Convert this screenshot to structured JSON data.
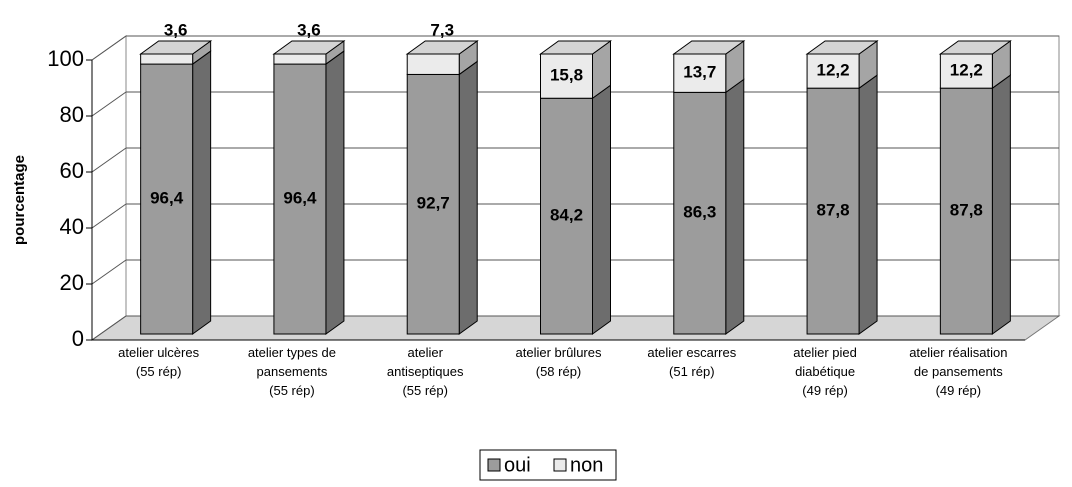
{
  "chart_data": {
    "type": "bar3d_stacked",
    "y_label": "pourcentage",
    "categories": [
      "atelier ulcères\n(55 rép)",
      "atelier types de\npansements\n(55 rép)",
      "atelier\nantiseptiques\n(55 rép)",
      "atelier brûlures\n(58 rép)",
      "atelier escarres\n(51 rép)",
      "atelier pied\ndiabétique\n(49 rép)",
      "atelier réalisation\nde pansements\n(49 rép)"
    ],
    "series": [
      {
        "name": "oui",
        "color": "#9c9c9c",
        "values": [
          96.4,
          96.4,
          92.7,
          84.2,
          86.3,
          87.8,
          87.8
        ],
        "value_labels": [
          "96,4",
          "96,4",
          "92,7",
          "84,2",
          "86,3",
          "87,8",
          "87,8"
        ]
      },
      {
        "name": "non",
        "color": "#ebebeb",
        "values": [
          3.6,
          3.6,
          7.3,
          15.8,
          13.7,
          12.2,
          12.2
        ],
        "value_labels": [
          "3,6",
          "3,6",
          "7,3",
          "15,8",
          "13,7",
          "12,2",
          "12,2"
        ]
      }
    ],
    "ylim": [
      0,
      100
    ],
    "yticks": [
      0,
      20,
      40,
      60,
      80,
      100
    ],
    "grid": true,
    "legend": "bottom"
  }
}
